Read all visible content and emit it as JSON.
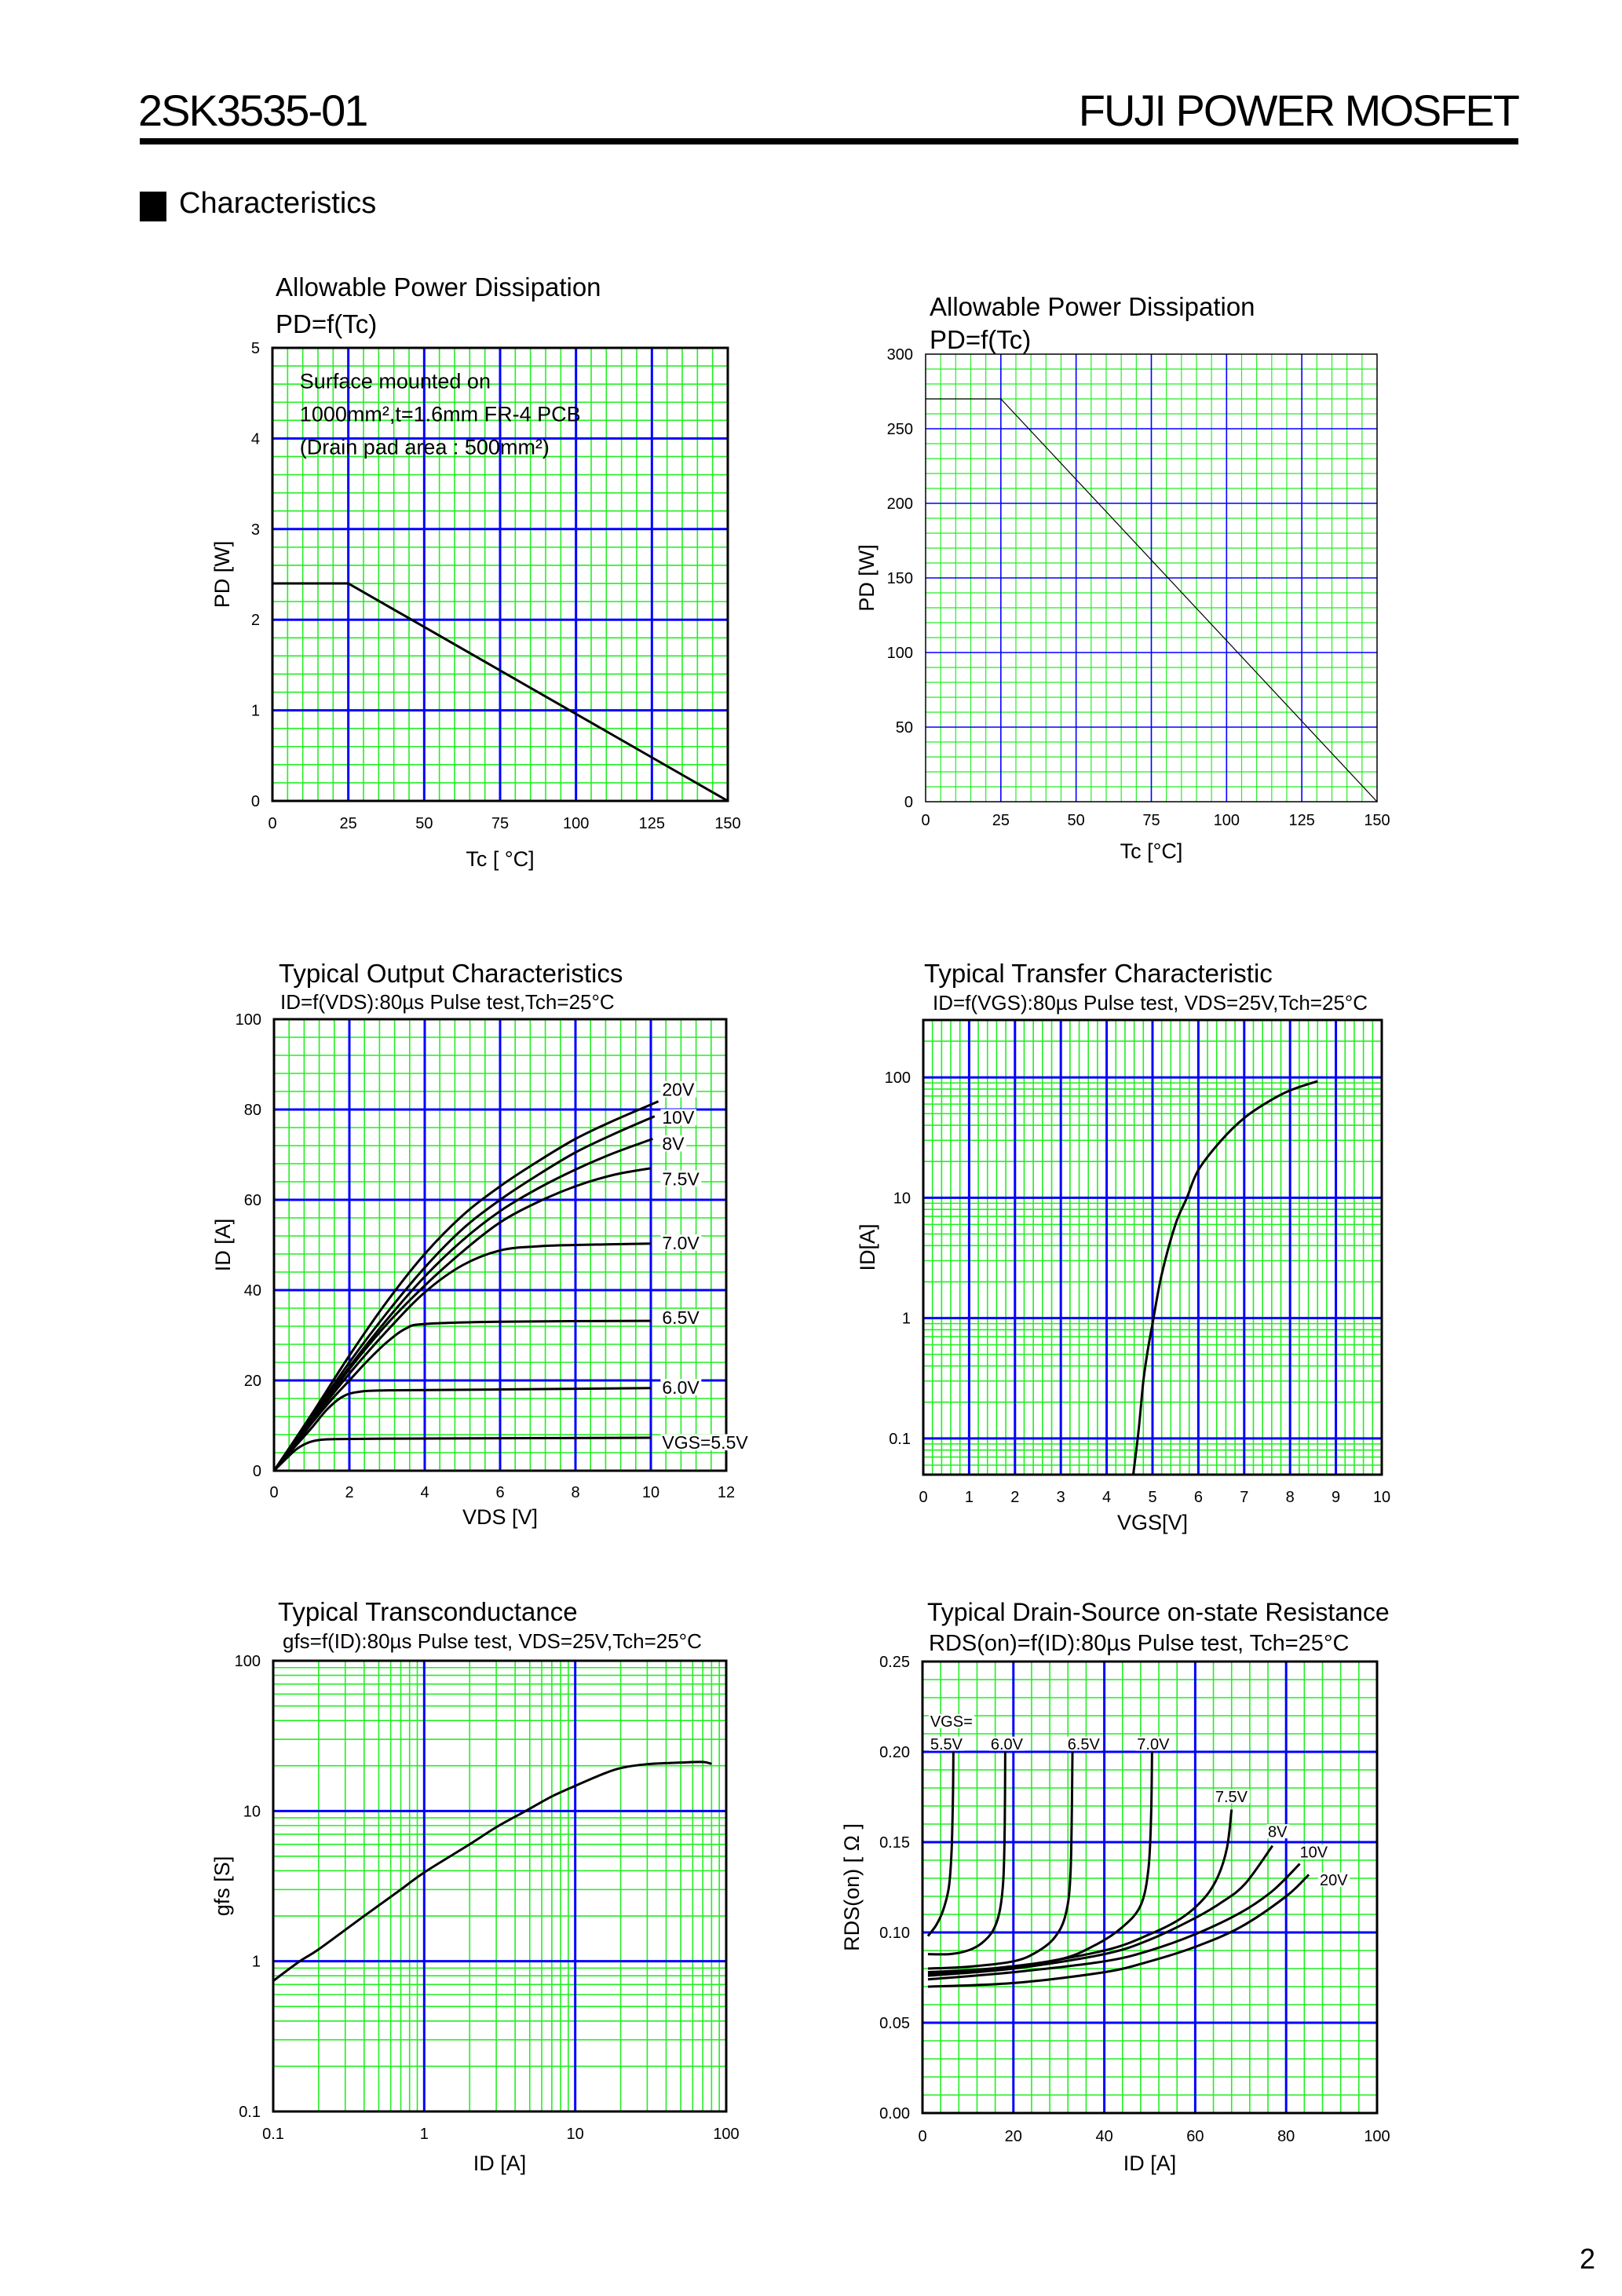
{
  "header": {
    "part_number": "2SK3535-01",
    "product_line": "FUJI POWER MOSFET"
  },
  "section": {
    "title": "Characteristics"
  },
  "page_number": "2",
  "colors": {
    "grid_minor": "#22ee22",
    "grid_major": "#0000ff",
    "curve": "#000000",
    "frame": "#000000"
  },
  "chart_data": [
    {
      "type": "line",
      "title": "Allowable Power Dissipation",
      "subtitle": "PD=f(Tc)",
      "xlabel": "Tc [ °C]",
      "ylabel": "PD [W]",
      "xscale": "linear",
      "yscale": "linear",
      "xlim": [
        0,
        150
      ],
      "ylim": [
        0,
        5
      ],
      "xticks": [
        0,
        25,
        50,
        75,
        100,
        125,
        150
      ],
      "xtick_labels": [
        "0",
        "25",
        "50",
        "75",
        "100",
        "125",
        "150"
      ],
      "yticks": [
        0,
        1,
        2,
        3,
        4,
        5
      ],
      "ytick_labels": [
        "0",
        "1",
        "2",
        "3",
        "4",
        "5"
      ],
      "grid": {
        "x_major": 25,
        "x_minor": 5,
        "y_major": 1,
        "y_minor": 0.2
      },
      "annotation": [
        "Surface mounted on",
        "1000mm²,t=1.6mm FR-4 PCB",
        "(Drain pad area : 500mm²)"
      ],
      "series": [
        {
          "points": [
            [
              0,
              2.4
            ],
            [
              25,
              2.4
            ],
            [
              150,
              0
            ]
          ]
        }
      ]
    },
    {
      "type": "line",
      "title": "Allowable Power Dissipation",
      "subtitle": "PD=f(Tc)",
      "xlabel": "Tc [°C]",
      "ylabel": "PD [W]",
      "xscale": "linear",
      "yscale": "linear",
      "xlim": [
        0,
        150
      ],
      "ylim": [
        0,
        300
      ],
      "xticks": [
        0,
        25,
        50,
        75,
        100,
        125,
        150
      ],
      "xtick_labels": [
        "0",
        "25",
        "50",
        "75",
        "100",
        "125",
        "150"
      ],
      "yticks": [
        0,
        50,
        100,
        150,
        200,
        250,
        300
      ],
      "ytick_labels": [
        "0",
        "50",
        "100",
        "150",
        "200",
        "250",
        "300"
      ],
      "grid": {
        "x_major": 25,
        "x_minor": 5,
        "y_major": 50,
        "y_minor": 10
      },
      "series": [
        {
          "points": [
            [
              0,
              270
            ],
            [
              25,
              270
            ],
            [
              150,
              0
            ]
          ]
        }
      ]
    },
    {
      "type": "line",
      "title": "Typical Output Characteristics",
      "subtitle": "ID=f(VDS):80µs Pulse test,Tch=25°C",
      "xlabel": "VDS [V]",
      "ylabel": "ID [A]",
      "xscale": "linear",
      "yscale": "linear",
      "xlim": [
        0,
        12
      ],
      "ylim": [
        0,
        100
      ],
      "xticks": [
        0,
        2,
        4,
        6,
        8,
        10,
        12
      ],
      "xtick_labels": [
        "0",
        "2",
        "4",
        "6",
        "8",
        "10",
        "12"
      ],
      "yticks": [
        0,
        20,
        40,
        60,
        80,
        100
      ],
      "ytick_labels": [
        "0",
        "20",
        "40",
        "60",
        "80",
        "100"
      ],
      "grid": {
        "x_major": 2,
        "x_minor": 0.4,
        "y_major": 20,
        "y_minor": 4
      },
      "series": [
        {
          "name": "VGS=5.5V",
          "points": [
            [
              0,
              0
            ],
            [
              0.3,
              2.5
            ],
            [
              0.6,
              4.8
            ],
            [
              0.9,
              6.2
            ],
            [
              1.2,
              6.8
            ],
            [
              1.6,
              7
            ],
            [
              3,
              7.1
            ],
            [
              6,
              7.2
            ],
            [
              10,
              7.3
            ]
          ]
        },
        {
          "name": "6.0V",
          "points": [
            [
              0,
              0
            ],
            [
              0.5,
              4.8
            ],
            [
              1,
              9.5
            ],
            [
              1.4,
              13.5
            ],
            [
              1.8,
              16.3
            ],
            [
              2.2,
              17.4
            ],
            [
              3,
              17.8
            ],
            [
              6,
              18
            ],
            [
              10,
              18.3
            ]
          ]
        },
        {
          "name": "6.5V",
          "points": [
            [
              0,
              0
            ],
            [
              0.5,
              5
            ],
            [
              1,
              10.5
            ],
            [
              1.5,
              15.5
            ],
            [
              2,
              20
            ],
            [
              2.5,
              24.5
            ],
            [
              3,
              28.5
            ],
            [
              3.5,
              31.5
            ],
            [
              4,
              32.5
            ],
            [
              6,
              33
            ],
            [
              10,
              33.2
            ]
          ]
        },
        {
          "name": "7.0V",
          "points": [
            [
              0,
              0
            ],
            [
              0.5,
              5.2
            ],
            [
              1,
              11
            ],
            [
              2,
              21.5
            ],
            [
              3,
              31
            ],
            [
              4,
              39.5
            ],
            [
              5,
              45.5
            ],
            [
              6,
              48.8
            ],
            [
              7,
              49.7
            ],
            [
              8,
              50
            ],
            [
              10,
              50.3
            ]
          ]
        },
        {
          "name": "7.5V",
          "points": [
            [
              0,
              0
            ],
            [
              1,
              11.2
            ],
            [
              2,
              22.5
            ],
            [
              3,
              32.5
            ],
            [
              4,
              41
            ],
            [
              5,
              48.5
            ],
            [
              6,
              55
            ],
            [
              7,
              59.5
            ],
            [
              8,
              63
            ],
            [
              9,
              65.5
            ],
            [
              10,
              67
            ]
          ]
        },
        {
          "name": "8V",
          "points": [
            [
              0,
              0
            ],
            [
              1,
              11.5
            ],
            [
              2,
              23
            ],
            [
              3,
              33.5
            ],
            [
              4,
              43
            ],
            [
              5,
              51
            ],
            [
              6,
              57.5
            ],
            [
              7,
              62.5
            ],
            [
              8,
              66.7
            ],
            [
              9,
              70.3
            ],
            [
              10.05,
              73.5
            ]
          ]
        },
        {
          "name": "10V",
          "points": [
            [
              0,
              0
            ],
            [
              1,
              12
            ],
            [
              2,
              24
            ],
            [
              3,
              35
            ],
            [
              4,
              45
            ],
            [
              5,
              53.5
            ],
            [
              6,
              60
            ],
            [
              7,
              65.5
            ],
            [
              8,
              70.5
            ],
            [
              9,
              74.5
            ],
            [
              10.1,
              78.5
            ]
          ]
        },
        {
          "name": "20V",
          "points": [
            [
              0,
              0
            ],
            [
              1,
              12.5
            ],
            [
              2,
              25.5
            ],
            [
              3,
              37.5
            ],
            [
              4,
              48
            ],
            [
              5,
              56.5
            ],
            [
              6,
              63
            ],
            [
              7,
              68.5
            ],
            [
              8,
              73.5
            ],
            [
              9,
              77.5
            ],
            [
              10.2,
              81.8
            ]
          ]
        }
      ]
    },
    {
      "type": "line",
      "title": "Typical Transfer Characteristic",
      "subtitle": "ID=f(VGS):80µs Pulse test, VDS=25V,Tch=25°C",
      "xlabel": "VGS[V]",
      "ylabel": "ID[A]",
      "xscale": "linear",
      "yscale": "log",
      "xlim": [
        0,
        10
      ],
      "ylim": [
        0.05,
        300
      ],
      "xticks": [
        0,
        1,
        2,
        3,
        4,
        5,
        6,
        7,
        8,
        9,
        10
      ],
      "xtick_labels": [
        "0",
        "1",
        "2",
        "3",
        "4",
        "5",
        "6",
        "7",
        "8",
        "9",
        "10"
      ],
      "yticks": [
        0.1,
        1,
        10,
        100
      ],
      "ytick_labels": [
        "0.1",
        "1",
        "10",
        "100"
      ],
      "grid": {
        "x_major": 1,
        "x_minor": 0.2
      },
      "series": [
        {
          "points": [
            [
              4.58,
              0.05
            ],
            [
              4.7,
              0.12
            ],
            [
              4.8,
              0.3
            ],
            [
              4.9,
              0.55
            ],
            [
              5,
              0.9
            ],
            [
              5.2,
              2.3
            ],
            [
              5.5,
              6
            ],
            [
              5.75,
              10
            ],
            [
              6,
              17
            ],
            [
              6.5,
              30
            ],
            [
              7,
              46
            ],
            [
              7.5,
              62
            ],
            [
              8,
              78
            ],
            [
              8.6,
              93
            ]
          ]
        }
      ]
    },
    {
      "type": "line",
      "title": "Typical Transconductance",
      "subtitle": "gfs=f(ID):80µs Pulse test, VDS=25V,Tch=25°C",
      "xlabel": "ID [A]",
      "ylabel": "gfs [S]",
      "xscale": "log",
      "yscale": "log",
      "xlim": [
        0.1,
        100
      ],
      "ylim": [
        0.1,
        100
      ],
      "xticks": [
        0.1,
        1,
        10,
        100
      ],
      "xtick_labels": [
        "0.1",
        "1",
        "10",
        "100"
      ],
      "yticks": [
        0.1,
        1,
        10,
        100
      ],
      "ytick_labels": [
        "0.1",
        "1",
        "10",
        "100"
      ],
      "grid": {},
      "series": [
        {
          "points": [
            [
              0.1,
              0.74
            ],
            [
              0.15,
              1
            ],
            [
              0.2,
              1.2
            ],
            [
              0.4,
              2
            ],
            [
              0.7,
              3
            ],
            [
              1,
              3.9
            ],
            [
              2,
              6
            ],
            [
              3,
              7.8
            ],
            [
              4.7,
              10
            ],
            [
              7,
              12.5
            ],
            [
              10,
              14.7
            ],
            [
              15,
              17.5
            ],
            [
              20,
              19.3
            ],
            [
              30,
              20.5
            ],
            [
              50,
              21
            ],
            [
              70,
              21.2
            ],
            [
              80,
              20.6
            ]
          ]
        }
      ]
    },
    {
      "type": "line",
      "title": "Typical Drain-Source on-state Resistance",
      "subtitle": "RDS(on)=f(ID):80µs Pulse test, Tch=25°C",
      "xlabel": "ID [A]",
      "ylabel": "RDS(on) [ Ω ]",
      "xscale": "linear",
      "yscale": "linear",
      "xlim": [
        0,
        100
      ],
      "ylim": [
        0,
        0.25
      ],
      "xticks": [
        0,
        20,
        40,
        60,
        80,
        100
      ],
      "xtick_labels": [
        "0",
        "20",
        "40",
        "60",
        "80",
        "100"
      ],
      "yticks": [
        0,
        0.05,
        0.1,
        0.15,
        0.2,
        0.25
      ],
      "ytick_labels": [
        "0.00",
        "0.05",
        "0.10",
        "0.15",
        "0.20",
        "0.25"
      ],
      "grid": {
        "x_major": 20,
        "x_minor": 4,
        "y_major": 0.05,
        "y_minor": 0.01
      },
      "legend_prefix": "VGS=",
      "series": [
        {
          "name": "5.5V",
          "points": [
            [
              1.2,
              0.098
            ],
            [
              3,
              0.104
            ],
            [
              4.5,
              0.112
            ],
            [
              5.8,
              0.125
            ],
            [
              6.4,
              0.145
            ],
            [
              6.7,
              0.175
            ],
            [
              6.8,
              0.2
            ]
          ]
        },
        {
          "name": "6.0V",
          "points": [
            [
              1.2,
              0.088
            ],
            [
              6,
              0.088
            ],
            [
              10,
              0.09
            ],
            [
              13,
              0.094
            ],
            [
              15.5,
              0.101
            ],
            [
              17,
              0.112
            ],
            [
              17.8,
              0.13
            ],
            [
              18.1,
              0.16
            ],
            [
              18.2,
              0.2
            ]
          ]
        },
        {
          "name": "6.5V",
          "points": [
            [
              1.2,
              0.08
            ],
            [
              10,
              0.081
            ],
            [
              20,
              0.084
            ],
            [
              25,
              0.089
            ],
            [
              29,
              0.097
            ],
            [
              31.5,
              0.11
            ],
            [
              32.6,
              0.135
            ],
            [
              33,
              0.2
            ]
          ]
        },
        {
          "name": "7.0V",
          "points": [
            [
              1.2,
              0.078
            ],
            [
              15,
              0.08
            ],
            [
              30,
              0.085
            ],
            [
              38,
              0.093
            ],
            [
              44,
              0.103
            ],
            [
              48,
              0.115
            ],
            [
              49.7,
              0.135
            ],
            [
              50.3,
              0.165
            ],
            [
              50.5,
              0.2
            ]
          ]
        },
        {
          "name": "7.5V",
          "points": [
            [
              1.2,
              0.077
            ],
            [
              20,
              0.081
            ],
            [
              40,
              0.09
            ],
            [
              50,
              0.099
            ],
            [
              57,
              0.108
            ],
            [
              62,
              0.119
            ],
            [
              65,
              0.131
            ],
            [
              67,
              0.147
            ],
            [
              68,
              0.168
            ]
          ]
        },
        {
          "name": "8V",
          "points": [
            [
              1.2,
              0.076
            ],
            [
              20,
              0.08
            ],
            [
              40,
              0.088
            ],
            [
              50,
              0.096
            ],
            [
              60,
              0.108
            ],
            [
              66,
              0.117
            ],
            [
              71,
              0.127
            ],
            [
              77,
              0.148
            ]
          ]
        },
        {
          "name": "10V",
          "points": [
            [
              1.2,
              0.074
            ],
            [
              20,
              0.078
            ],
            [
              40,
              0.084
            ],
            [
              50,
              0.09
            ],
            [
              60,
              0.099
            ],
            [
              70,
              0.111
            ],
            [
              77,
              0.123
            ],
            [
              83,
              0.138
            ]
          ]
        },
        {
          "name": "20V",
          "points": [
            [
              1.2,
              0.07
            ],
            [
              20,
              0.072
            ],
            [
              40,
              0.078
            ],
            [
              50,
              0.084
            ],
            [
              60,
              0.092
            ],
            [
              70,
              0.103
            ],
            [
              80,
              0.12
            ],
            [
              85,
              0.132
            ]
          ]
        }
      ]
    }
  ]
}
